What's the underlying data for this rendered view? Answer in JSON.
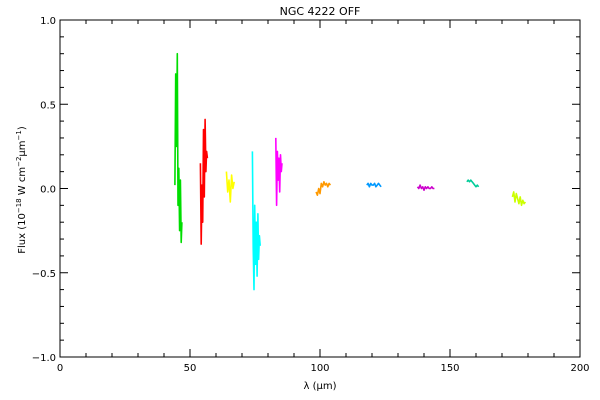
{
  "chart_data": {
    "type": "line",
    "title": "NGC 4222 OFF",
    "xlabel": "λ (μm)",
    "ylabel": {
      "prefix": "Flux (10",
      "exp1": "−18",
      "mid": " W cm",
      "exp2": "−2",
      "mid2": "μm",
      "exp3": "−1",
      "suffix": ")"
    },
    "xlim": [
      0,
      200
    ],
    "ylim": [
      -1.0,
      1.0
    ],
    "x_ticks": [
      0,
      50,
      100,
      150,
      200
    ],
    "x_tick_labels": [
      "0",
      "50",
      "100",
      "150",
      "200"
    ],
    "y_ticks": [
      -1.0,
      -0.5,
      0.0,
      0.5,
      1.0
    ],
    "y_tick_labels": [
      "−1.0",
      "−0.5",
      "0.0",
      "0.5",
      "1.0"
    ],
    "grid": false,
    "series": [
      {
        "color": "#00dd00",
        "x": [
          44.2,
          44.5,
          44.8,
          45.1,
          45.4,
          45.7,
          46.0,
          46.3,
          46.6,
          46.9
        ],
        "y": [
          0.02,
          0.68,
          0.25,
          0.8,
          -0.1,
          0.12,
          -0.25,
          0.05,
          -0.32,
          -0.2
        ]
      },
      {
        "color": "#ff0000",
        "x": [
          54.0,
          54.3,
          54.6,
          54.9,
          55.2,
          55.5,
          55.8,
          56.1,
          56.4,
          56.7
        ],
        "y": [
          0.15,
          -0.33,
          0.02,
          -0.2,
          0.35,
          -0.05,
          0.41,
          0.1,
          0.22,
          0.18
        ]
      },
      {
        "color": "#ffff00",
        "x": [
          64.0,
          64.5,
          65.0,
          65.5,
          66.0,
          66.5,
          67.0
        ],
        "y": [
          0.1,
          -0.02,
          0.05,
          -0.08,
          0.08,
          0.0,
          0.04
        ]
      },
      {
        "color": "#00ffff",
        "x": [
          74.0,
          74.3,
          74.6,
          74.9,
          75.2,
          75.5,
          75.8,
          76.1,
          76.4,
          76.7,
          77.0
        ],
        "y": [
          0.22,
          -0.35,
          -0.6,
          -0.1,
          -0.45,
          -0.2,
          -0.52,
          -0.15,
          -0.42,
          -0.28,
          -0.34
        ]
      },
      {
        "color": "#ff00ff",
        "x": [
          83.0,
          83.3,
          83.6,
          83.9,
          84.2,
          84.5,
          84.8,
          85.1,
          85.4
        ],
        "y": [
          0.3,
          -0.1,
          0.22,
          0.05,
          0.18,
          -0.02,
          0.2,
          0.1,
          0.15
        ]
      },
      {
        "color": "#ff9900",
        "x": [
          98.5,
          99.0,
          99.5,
          100.0,
          100.5,
          101.0,
          101.5,
          102.0,
          102.5,
          103.0,
          103.5,
          104.0
        ],
        "y": [
          -0.02,
          -0.04,
          0.0,
          -0.03,
          0.03,
          0.01,
          0.04,
          0.02,
          0.03,
          0.01,
          0.03,
          0.02
        ]
      },
      {
        "color": "#0099ff",
        "x": [
          118.0,
          118.5,
          119.0,
          119.5,
          120.0,
          120.5,
          121.0,
          121.5,
          122.0,
          122.5,
          123.0,
          123.5
        ],
        "y": [
          0.02,
          0.03,
          0.01,
          0.03,
          0.02,
          0.02,
          0.03,
          0.01,
          0.02,
          0.03,
          0.02,
          0.01
        ]
      },
      {
        "color": "#cc00cc",
        "x": [
          137.5,
          138.0,
          138.5,
          139.0,
          139.5,
          140.0,
          140.5,
          141.0,
          141.5,
          142.0,
          142.5,
          143.0,
          143.5,
          144.0
        ],
        "y": [
          0.01,
          0.0,
          0.02,
          0.0,
          0.01,
          -0.01,
          0.01,
          0.0,
          0.01,
          0.0,
          0.0,
          0.01,
          0.0,
          0.0
        ]
      },
      {
        "color": "#00cc99",
        "x": [
          156.5,
          157.0,
          157.5,
          158.0,
          158.5,
          159.0,
          159.5,
          160.0,
          160.5,
          161.0
        ],
        "y": [
          0.04,
          0.05,
          0.04,
          0.05,
          0.04,
          0.03,
          0.02,
          0.01,
          0.02,
          0.01
        ]
      },
      {
        "color": "#ccff00",
        "x": [
          174.0,
          174.5,
          175.0,
          175.5,
          176.0,
          176.5,
          177.0,
          177.5,
          178.0,
          178.5,
          179.0
        ],
        "y": [
          -0.05,
          -0.02,
          -0.08,
          -0.03,
          -0.06,
          -0.09,
          -0.05,
          -0.1,
          -0.07,
          -0.09,
          -0.08
        ]
      }
    ]
  }
}
